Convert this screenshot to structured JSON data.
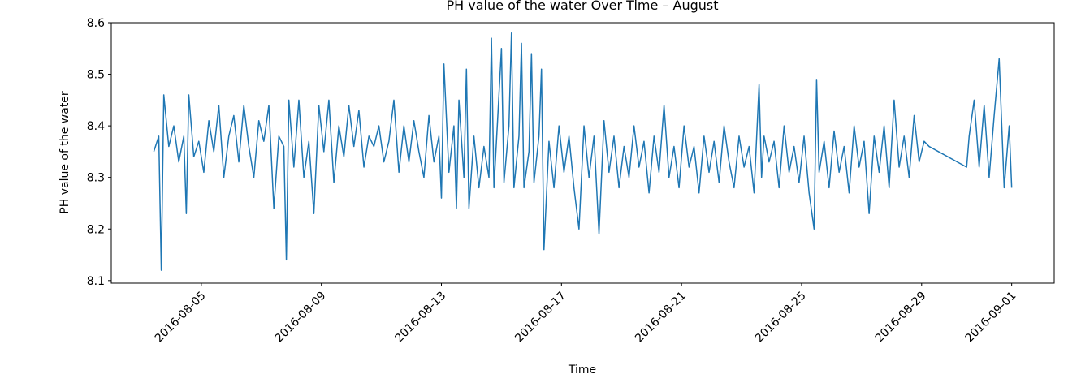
{
  "chart_data": {
    "type": "line",
    "title": "PH value of the water Over Time – August",
    "x_label": "Time",
    "y_label": "PH value of the water",
    "color": "#1f77b4",
    "x": [
      "2016-08-03 10:00",
      "2016-08-03 14:00",
      "2016-08-03 16:00",
      "2016-08-03 18:00",
      "2016-08-03 22:00",
      "2016-08-04 02:00",
      "2016-08-04 06:00",
      "2016-08-04 10:00",
      "2016-08-04 12:00",
      "2016-08-04 14:00",
      "2016-08-04 18:00",
      "2016-08-04 22:00",
      "2016-08-05 02:00",
      "2016-08-05 06:00",
      "2016-08-05 10:00",
      "2016-08-05 14:00",
      "2016-08-05 18:00",
      "2016-08-05 22:00",
      "2016-08-06 02:00",
      "2016-08-06 06:00",
      "2016-08-06 10:00",
      "2016-08-06 14:00",
      "2016-08-06 18:00",
      "2016-08-06 22:00",
      "2016-08-07 02:00",
      "2016-08-07 06:00",
      "2016-08-07 10:00",
      "2016-08-07 14:00",
      "2016-08-07 18:00",
      "2016-08-07 20:00",
      "2016-08-07 22:00",
      "2016-08-08 02:00",
      "2016-08-08 06:00",
      "2016-08-08 10:00",
      "2016-08-08 14:00",
      "2016-08-08 18:00",
      "2016-08-08 22:00",
      "2016-08-09 02:00",
      "2016-08-09 06:00",
      "2016-08-09 10:00",
      "2016-08-09 14:00",
      "2016-08-09 18:00",
      "2016-08-09 22:00",
      "2016-08-10 02:00",
      "2016-08-10 06:00",
      "2016-08-10 10:00",
      "2016-08-10 14:00",
      "2016-08-10 18:00",
      "2016-08-10 22:00",
      "2016-08-11 02:00",
      "2016-08-11 06:00",
      "2016-08-11 10:00",
      "2016-08-11 14:00",
      "2016-08-11 18:00",
      "2016-08-11 22:00",
      "2016-08-12 02:00",
      "2016-08-12 06:00",
      "2016-08-12 10:00",
      "2016-08-12 14:00",
      "2016-08-12 18:00",
      "2016-08-12 22:00",
      "2016-08-13 00:00",
      "2016-08-13 02:00",
      "2016-08-13 06:00",
      "2016-08-13 10:00",
      "2016-08-13 12:00",
      "2016-08-13 14:00",
      "2016-08-13 18:00",
      "2016-08-13 20:00",
      "2016-08-13 22:00",
      "2016-08-14 02:00",
      "2016-08-14 06:00",
      "2016-08-14 10:00",
      "2016-08-14 14:00",
      "2016-08-14 16:00",
      "2016-08-14 18:00",
      "2016-08-15 00:00",
      "2016-08-15 02:00",
      "2016-08-15 06:00",
      "2016-08-15 08:00",
      "2016-08-15 10:00",
      "2016-08-15 14:00",
      "2016-08-15 16:00",
      "2016-08-15 18:00",
      "2016-08-15 22:00",
      "2016-08-16 00:00",
      "2016-08-16 02:00",
      "2016-08-16 06:00",
      "2016-08-16 08:00",
      "2016-08-16 10:00",
      "2016-08-16 14:00",
      "2016-08-16 18:00",
      "2016-08-16 22:00",
      "2016-08-17 02:00",
      "2016-08-17 06:00",
      "2016-08-17 10:00",
      "2016-08-17 14:00",
      "2016-08-17 18:00",
      "2016-08-17 22:00",
      "2016-08-18 02:00",
      "2016-08-18 06:00",
      "2016-08-18 10:00",
      "2016-08-18 14:00",
      "2016-08-18 18:00",
      "2016-08-18 22:00",
      "2016-08-19 02:00",
      "2016-08-19 06:00",
      "2016-08-19 10:00",
      "2016-08-19 14:00",
      "2016-08-19 18:00",
      "2016-08-19 22:00",
      "2016-08-20 02:00",
      "2016-08-20 06:00",
      "2016-08-20 10:00",
      "2016-08-20 14:00",
      "2016-08-20 18:00",
      "2016-08-20 22:00",
      "2016-08-21 02:00",
      "2016-08-21 06:00",
      "2016-08-21 10:00",
      "2016-08-21 14:00",
      "2016-08-21 18:00",
      "2016-08-21 22:00",
      "2016-08-22 02:00",
      "2016-08-22 06:00",
      "2016-08-22 10:00",
      "2016-08-22 14:00",
      "2016-08-22 18:00",
      "2016-08-22 22:00",
      "2016-08-23 02:00",
      "2016-08-23 06:00",
      "2016-08-23 10:00",
      "2016-08-23 14:00",
      "2016-08-23 16:00",
      "2016-08-23 18:00",
      "2016-08-23 22:00",
      "2016-08-24 02:00",
      "2016-08-24 06:00",
      "2016-08-24 10:00",
      "2016-08-24 14:00",
      "2016-08-24 18:00",
      "2016-08-24 22:00",
      "2016-08-25 02:00",
      "2016-08-25 06:00",
      "2016-08-25 10:00",
      "2016-08-25 12:00",
      "2016-08-25 14:00",
      "2016-08-25 18:00",
      "2016-08-25 22:00",
      "2016-08-26 02:00",
      "2016-08-26 06:00",
      "2016-08-26 10:00",
      "2016-08-26 14:00",
      "2016-08-26 18:00",
      "2016-08-26 22:00",
      "2016-08-27 02:00",
      "2016-08-27 06:00",
      "2016-08-27 10:00",
      "2016-08-27 14:00",
      "2016-08-27 18:00",
      "2016-08-27 22:00",
      "2016-08-28 02:00",
      "2016-08-28 06:00",
      "2016-08-28 10:00",
      "2016-08-28 14:00",
      "2016-08-28 18:00",
      "2016-08-28 22:00",
      "2016-08-29 02:00",
      "2016-08-29 06:00",
      "2016-08-30 12:00",
      "2016-08-30 14:00",
      "2016-08-30 18:00",
      "2016-08-30 22:00",
      "2016-08-31 02:00",
      "2016-08-31 06:00",
      "2016-08-31 10:00",
      "2016-08-31 14:00",
      "2016-08-31 18:00",
      "2016-08-31 22:00",
      "2016-09-01 00:00"
    ],
    "values": [
      8.35,
      8.38,
      8.12,
      8.46,
      8.36,
      8.4,
      8.33,
      8.38,
      8.23,
      8.46,
      8.34,
      8.37,
      8.31,
      8.41,
      8.35,
      8.44,
      8.3,
      8.38,
      8.42,
      8.33,
      8.44,
      8.36,
      8.3,
      8.41,
      8.37,
      8.44,
      8.24,
      8.38,
      8.36,
      8.14,
      8.45,
      8.32,
      8.45,
      8.3,
      8.37,
      8.23,
      8.44,
      8.35,
      8.45,
      8.29,
      8.4,
      8.34,
      8.44,
      8.36,
      8.43,
      8.32,
      8.38,
      8.36,
      8.4,
      8.33,
      8.37,
      8.45,
      8.31,
      8.4,
      8.33,
      8.41,
      8.35,
      8.3,
      8.42,
      8.33,
      8.38,
      8.26,
      8.52,
      8.31,
      8.4,
      8.24,
      8.45,
      8.3,
      8.51,
      8.24,
      8.38,
      8.28,
      8.36,
      8.3,
      8.57,
      8.28,
      8.55,
      8.29,
      8.4,
      8.58,
      8.28,
      8.38,
      8.56,
      8.28,
      8.35,
      8.54,
      8.29,
      8.38,
      8.51,
      8.16,
      8.37,
      8.28,
      8.4,
      8.31,
      8.38,
      8.28,
      8.2,
      8.4,
      8.3,
      8.38,
      8.19,
      8.41,
      8.31,
      8.38,
      8.28,
      8.36,
      8.3,
      8.4,
      8.32,
      8.37,
      8.27,
      8.38,
      8.31,
      8.44,
      8.3,
      8.36,
      8.28,
      8.4,
      8.32,
      8.36,
      8.27,
      8.38,
      8.31,
      8.37,
      8.29,
      8.4,
      8.33,
      8.28,
      8.38,
      8.32,
      8.36,
      8.27,
      8.48,
      8.3,
      8.38,
      8.33,
      8.37,
      8.28,
      8.4,
      8.31,
      8.36,
      8.29,
      8.38,
      8.27,
      8.2,
      8.49,
      8.31,
      8.37,
      8.28,
      8.39,
      8.31,
      8.36,
      8.27,
      8.4,
      8.32,
      8.37,
      8.23,
      8.38,
      8.31,
      8.4,
      8.28,
      8.45,
      8.32,
      8.38,
      8.3,
      8.42,
      8.33,
      8.37,
      8.36,
      8.32,
      8.38,
      8.45,
      8.32,
      8.44,
      8.3,
      8.42,
      8.53,
      8.28,
      8.4,
      8.28
    ],
    "xlim": [
      "2016-08-02 00:00",
      "2016-09-02 10:00"
    ],
    "xticks": [
      "2016-08-05",
      "2016-08-09",
      "2016-08-13",
      "2016-08-17",
      "2016-08-21",
      "2016-08-25",
      "2016-08-29",
      "2016-09-01"
    ],
    "ylim": [
      8.095,
      8.6
    ],
    "yticks": [
      8.1,
      8.2,
      8.3,
      8.4,
      8.5,
      8.6
    ]
  }
}
